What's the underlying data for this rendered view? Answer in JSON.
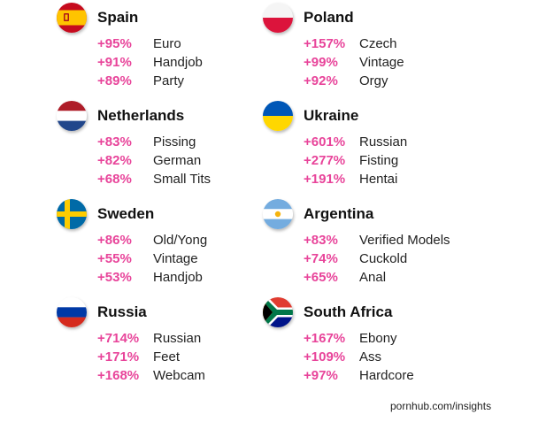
{
  "countries": [
    {
      "name": "Spain",
      "flag_icon": "spain-flag-icon",
      "stats": [
        {
          "pct": "+95%",
          "category": "Euro"
        },
        {
          "pct": "+91%",
          "category": "Handjob"
        },
        {
          "pct": "+89%",
          "category": "Party"
        }
      ]
    },
    {
      "name": "Poland",
      "flag_icon": "poland-flag-icon",
      "stats": [
        {
          "pct": "+157%",
          "category": "Czech"
        },
        {
          "pct": "+99%",
          "category": "Vintage"
        },
        {
          "pct": "+92%",
          "category": "Orgy"
        }
      ]
    },
    {
      "name": "Netherlands",
      "flag_icon": "netherlands-flag-icon",
      "stats": [
        {
          "pct": "+83%",
          "category": "Pissing"
        },
        {
          "pct": "+82%",
          "category": "German"
        },
        {
          "pct": "+68%",
          "category": "Small Tits"
        }
      ]
    },
    {
      "name": "Ukraine",
      "flag_icon": "ukraine-flag-icon",
      "stats": [
        {
          "pct": "+601%",
          "category": "Russian"
        },
        {
          "pct": "+277%",
          "category": "Fisting"
        },
        {
          "pct": "+191%",
          "category": "Hentai"
        }
      ]
    },
    {
      "name": "Sweden",
      "flag_icon": "sweden-flag-icon",
      "stats": [
        {
          "pct": "+86%",
          "category": "Old/Yong"
        },
        {
          "pct": "+55%",
          "category": "Vintage"
        },
        {
          "pct": "+53%",
          "category": "Handjob"
        }
      ]
    },
    {
      "name": "Argentina",
      "flag_icon": "argentina-flag-icon",
      "stats": [
        {
          "pct": "+83%",
          "category": "Verified Models"
        },
        {
          "pct": "+74%",
          "category": "Cuckold"
        },
        {
          "pct": "+65%",
          "category": "Anal"
        }
      ]
    },
    {
      "name": "Russia",
      "flag_icon": "russia-flag-icon",
      "stats": [
        {
          "pct": "+714%",
          "category": "Russian"
        },
        {
          "pct": "+171%",
          "category": "Feet"
        },
        {
          "pct": "+168%",
          "category": "Webcam"
        }
      ]
    },
    {
      "name": "South Africa",
      "flag_icon": "south-africa-flag-icon",
      "stats": [
        {
          "pct": "+167%",
          "category": "Ebony"
        },
        {
          "pct": "+109%",
          "category": "Ass"
        },
        {
          "pct": "+97%",
          "category": "Hardcore"
        }
      ]
    }
  ],
  "footer": "pornhub.com/insights",
  "colors": {
    "percent": "#e8449a",
    "country": "#111111",
    "category": "#222222"
  }
}
